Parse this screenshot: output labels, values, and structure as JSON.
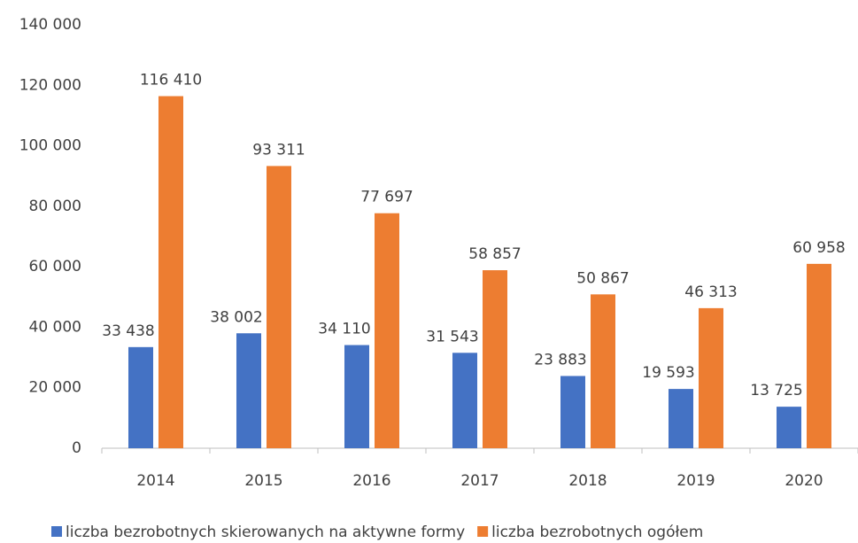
{
  "chart_data": {
    "type": "bar",
    "categories": [
      "2014",
      "2015",
      "2016",
      "2017",
      "2018",
      "2019",
      "2020"
    ],
    "series": [
      {
        "name": "liczba bezrobotnych skierowanych na aktywne formy",
        "color": "#4472c4",
        "values": [
          33438,
          38002,
          34110,
          31543,
          23883,
          19593,
          13725
        ],
        "value_labels": [
          "33 438",
          "38 002",
          "34 110",
          "31 543",
          "23 883",
          "19 593",
          "13 725"
        ]
      },
      {
        "name": "liczba bezrobotnych ogółem",
        "color": "#ed7d31",
        "values": [
          116410,
          93311,
          77697,
          58857,
          50867,
          46313,
          60958
        ],
        "value_labels": [
          "116 410",
          "93 311",
          "77 697",
          "58 857",
          "50 867",
          "46 313",
          "60 958"
        ]
      }
    ],
    "ylim": [
      0,
      140000
    ],
    "yticks": [
      {
        "value": 0,
        "label": "0"
      },
      {
        "value": 20000,
        "label": "20 000"
      },
      {
        "value": 40000,
        "label": "40 000"
      },
      {
        "value": 60000,
        "label": "60 000"
      },
      {
        "value": 80000,
        "label": "80 000"
      },
      {
        "value": 100000,
        "label": "100 000"
      },
      {
        "value": 120000,
        "label": "120 000"
      },
      {
        "value": 140000,
        "label": "140 000"
      }
    ],
    "grid": false,
    "legend": "bottom"
  }
}
